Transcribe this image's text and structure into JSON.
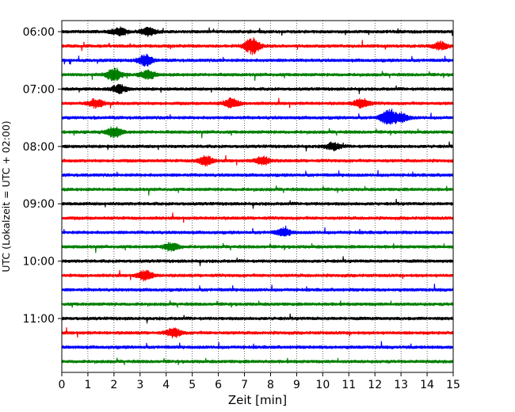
{
  "chart_data": {
    "type": "line",
    "subtype": "seismic-helicorder",
    "xlabel": "Zeit  [min]",
    "ylabel": "UTC (Lokalzeit = UTC + 02:00)",
    "xlim": [
      0,
      15
    ],
    "x_ticks": [
      0,
      1,
      2,
      3,
      4,
      5,
      6,
      7,
      8,
      9,
      10,
      11,
      12,
      13,
      14,
      15
    ],
    "x_tick_labels": [
      "0",
      "1",
      "2",
      "3",
      "4",
      "5",
      "6",
      "7",
      "8",
      "9",
      "10",
      "11",
      "12",
      "13",
      "14",
      "15"
    ],
    "grid": "vertical-dotted",
    "trace_start": "06:00",
    "trace_interval_minutes": 15,
    "trace_count": 24,
    "trace_colors": [
      "#000000",
      "#ff0000",
      "#0000ff",
      "#008000"
    ],
    "y_ticks": [
      {
        "trace_index": 0,
        "label": "06:00"
      },
      {
        "trace_index": 4,
        "label": "07:00"
      },
      {
        "trace_index": 8,
        "label": "08:00"
      },
      {
        "trace_index": 12,
        "label": "09:00"
      },
      {
        "trace_index": 16,
        "label": "10:00"
      },
      {
        "trace_index": 20,
        "label": "11:00"
      }
    ],
    "events": [
      {
        "trace_index": 0,
        "minute": 2.2,
        "strength": 1.1
      },
      {
        "trace_index": 0,
        "minute": 3.3,
        "strength": 1.0
      },
      {
        "trace_index": 1,
        "minute": 7.3,
        "strength": 2.2
      },
      {
        "trace_index": 1,
        "minute": 14.5,
        "strength": 1.0
      },
      {
        "trace_index": 2,
        "minute": 3.2,
        "strength": 1.5
      },
      {
        "trace_index": 3,
        "minute": 2.0,
        "strength": 1.8
      },
      {
        "trace_index": 3,
        "minute": 3.3,
        "strength": 1.2
      },
      {
        "trace_index": 4,
        "minute": 2.2,
        "strength": 1.1
      },
      {
        "trace_index": 5,
        "minute": 1.3,
        "strength": 1.2
      },
      {
        "trace_index": 5,
        "minute": 6.5,
        "strength": 1.3
      },
      {
        "trace_index": 5,
        "minute": 11.5,
        "strength": 1.3
      },
      {
        "trace_index": 6,
        "minute": 12.5,
        "strength": 2.0
      },
      {
        "trace_index": 6,
        "minute": 13.0,
        "strength": 1.2
      },
      {
        "trace_index": 7,
        "minute": 2.0,
        "strength": 1.4
      },
      {
        "trace_index": 8,
        "minute": 10.4,
        "strength": 1.0
      },
      {
        "trace_index": 9,
        "minute": 5.5,
        "strength": 1.3
      },
      {
        "trace_index": 9,
        "minute": 7.7,
        "strength": 1.1
      },
      {
        "trace_index": 14,
        "minute": 8.5,
        "strength": 1.0
      },
      {
        "trace_index": 15,
        "minute": 4.2,
        "strength": 1.1
      },
      {
        "trace_index": 17,
        "minute": 3.2,
        "strength": 1.4
      },
      {
        "trace_index": 21,
        "minute": 4.3,
        "strength": 1.2
      }
    ]
  }
}
